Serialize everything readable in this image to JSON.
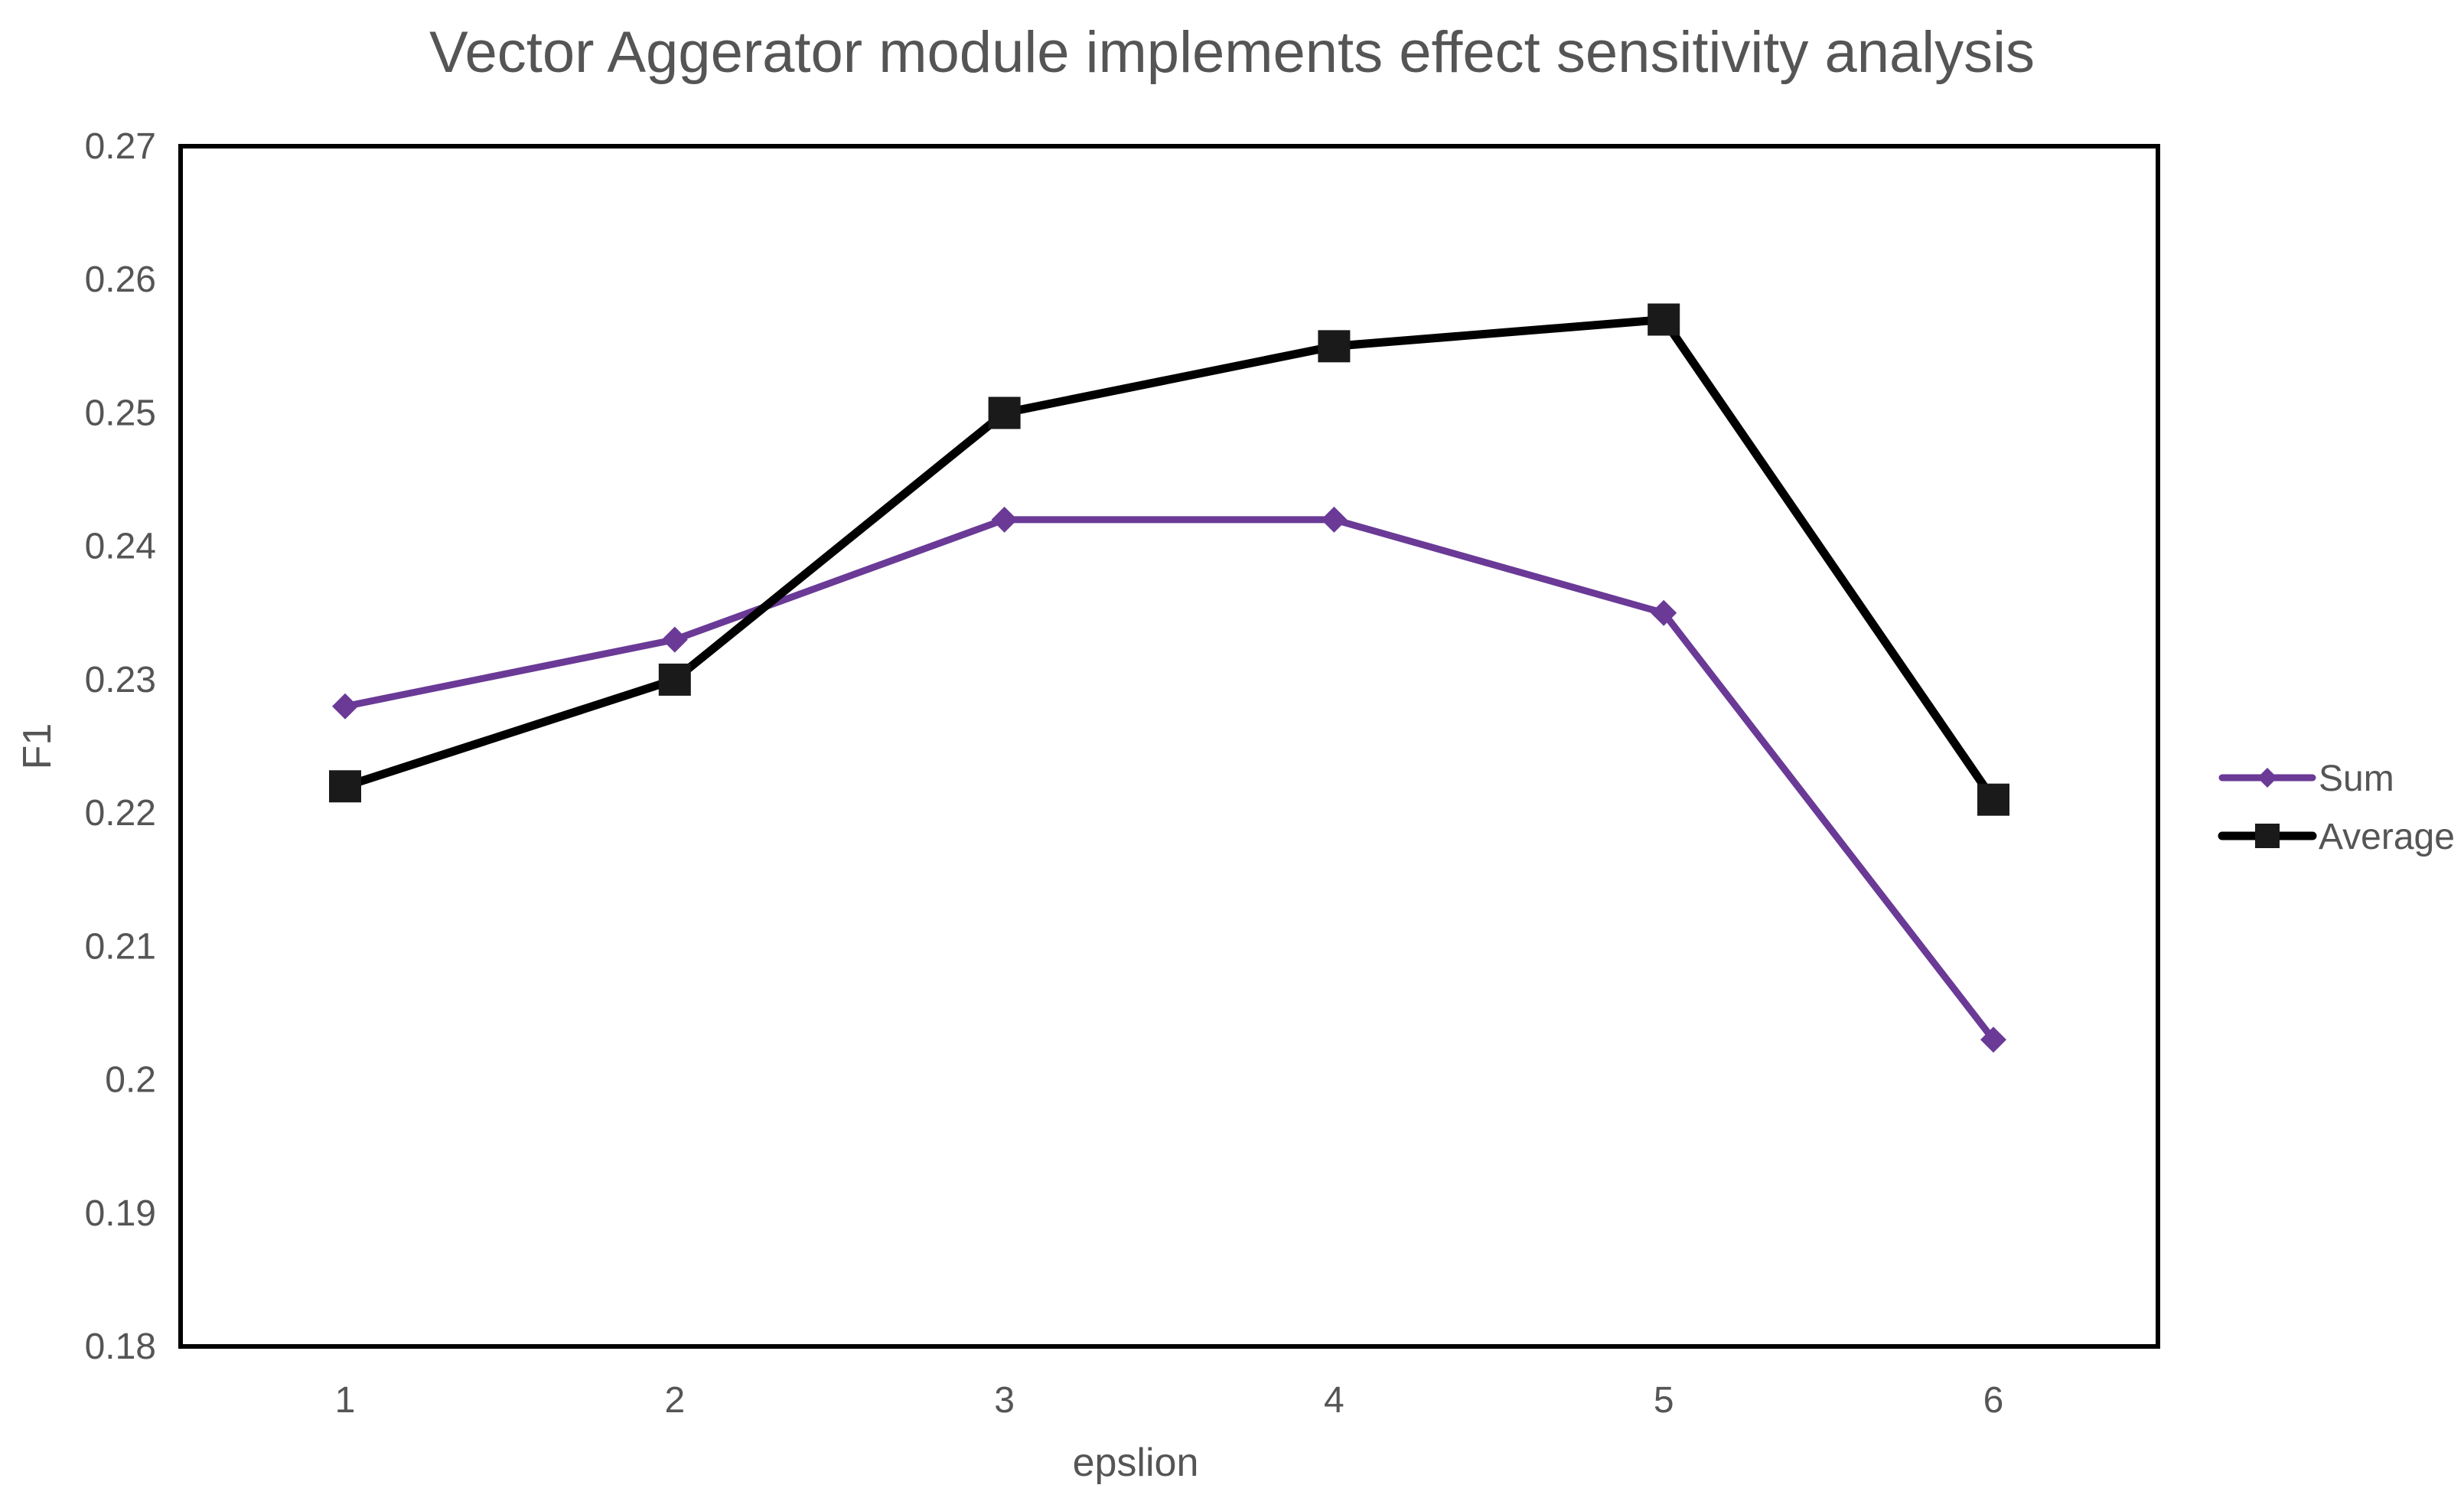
{
  "chart_data": {
    "type": "line",
    "title": "Vector Aggerator module implements effect sensitivity analysis",
    "xlabel": "epslion",
    "ylabel": "F1",
    "categories": [
      "1",
      "2",
      "3",
      "4",
      "5",
      "6"
    ],
    "x": [
      1,
      2,
      3,
      4,
      5,
      6
    ],
    "ylim": [
      0.18,
      0.27
    ],
    "yticks": [
      "0.18",
      "0.19",
      "0.2",
      "0.21",
      "0.22",
      "0.23",
      "0.24",
      "0.25",
      "0.26",
      "0.27"
    ],
    "ytick_values": [
      0.18,
      0.19,
      0.2,
      0.21,
      0.22,
      0.23,
      0.24,
      0.25,
      0.26,
      0.27
    ],
    "grid": false,
    "legend_position": "right",
    "series": [
      {
        "name": "Sum",
        "marker": "diamond",
        "color": "#6a3a96",
        "values": [
          0.228,
          0.233,
          0.242,
          0.242,
          0.235,
          0.203
        ]
      },
      {
        "name": "Average",
        "marker": "square",
        "color": "#000000",
        "values": [
          0.222,
          0.23,
          0.25,
          0.255,
          0.257,
          0.221
        ]
      }
    ]
  }
}
